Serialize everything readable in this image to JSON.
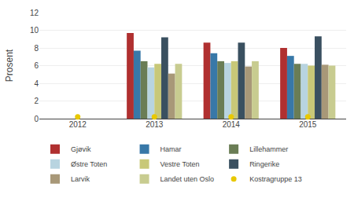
{
  "chart_data": {
    "type": "bar",
    "categories": [
      "2012",
      "2013",
      "2014",
      "2015"
    ],
    "series": [
      {
        "name": "Gjøvik",
        "color": "#b03030",
        "values": [
          0.0,
          9.7,
          8.6,
          8.0
        ]
      },
      {
        "name": "Hamar",
        "color": "#3878a8",
        "values": [
          0.0,
          7.7,
          7.4,
          7.1
        ]
      },
      {
        "name": "Lillehammer",
        "color": "#6a7d55",
        "values": [
          0.0,
          6.5,
          6.5,
          6.2
        ]
      },
      {
        "name": "Østre Toten",
        "color": "#b8d4e0",
        "values": [
          0.0,
          5.8,
          6.3,
          6.2
        ]
      },
      {
        "name": "Vestre Toten",
        "color": "#c8c878",
        "values": [
          0.0,
          6.2,
          6.5,
          6.0
        ]
      },
      {
        "name": "Ringerike",
        "color": "#3a5060",
        "values": [
          0.0,
          9.2,
          8.6,
          9.3
        ]
      },
      {
        "name": "Larvik",
        "color": "#a89878",
        "values": [
          0.0,
          5.1,
          5.9,
          6.1
        ]
      },
      {
        "name": "Landet uten Oslo",
        "color": "#c8cc90",
        "values": [
          0.0,
          6.2,
          6.5,
          6.0
        ]
      },
      {
        "name": "Kostragruppe 13",
        "color": "#e8c800",
        "type": "scatter",
        "marker": "circle",
        "values": [
          0.2,
          0.2,
          0.2,
          0.2
        ]
      }
    ],
    "ylabel": "Prosent",
    "ylim": [
      0,
      12
    ],
    "yticks": [
      0,
      2,
      4,
      6,
      8,
      10,
      12
    ],
    "grid": true,
    "legend": "bottom"
  }
}
